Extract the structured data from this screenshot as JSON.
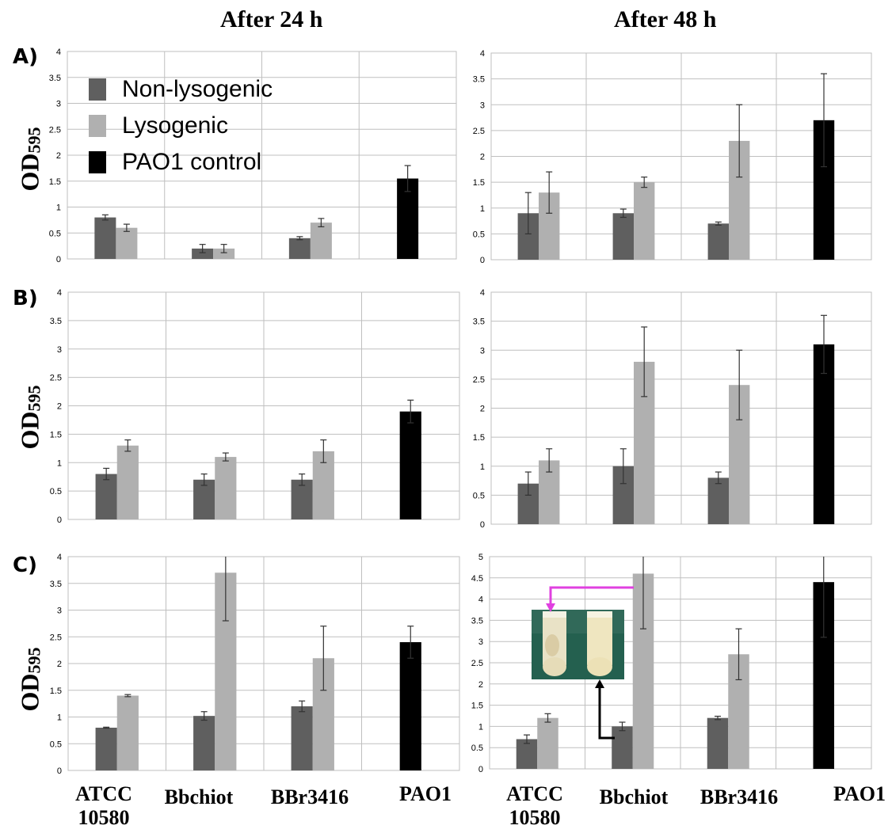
{
  "titles": {
    "left": "After 24 h",
    "right": "After 48 h"
  },
  "row_labels": [
    "A)",
    "B)",
    "C)"
  ],
  "y_axis_label": {
    "main": "OD",
    "sub": "595"
  },
  "categories_display": [
    {
      "line1": "ATCC",
      "line2": "10580"
    },
    {
      "line1": "Bbchiot",
      "line2": ""
    },
    {
      "line1": "BBr3416",
      "line2": ""
    },
    {
      "line1": "PAO1",
      "line2": ""
    }
  ],
  "legend": [
    {
      "label": "Non-lysogenic",
      "color": "#5f5f5f"
    },
    {
      "label": "Lysogenic",
      "color": "#b0b0b0"
    },
    {
      "label": "PAO1 control",
      "color": "#000000"
    }
  ],
  "colors": {
    "non_lysogenic": "#5f5f5f",
    "lysogenic": "#b0b0b0",
    "pao1": "#000000",
    "gridline": "#bfbfbf",
    "arrow_magenta": "#e040e0",
    "arrow_black": "#000000"
  },
  "chart_data": [
    {
      "panel": "A) After 24 h",
      "type": "bar",
      "categories": [
        "ATCC 10580",
        "Bbchiot",
        "BBr3416",
        "PAO1"
      ],
      "yticks": [
        "0",
        "0.5",
        "1",
        "1.5",
        "2",
        "2.5",
        "3",
        "3.5",
        "4"
      ],
      "ylim": [
        0,
        4
      ],
      "series": [
        {
          "name": "Non-lysogenic",
          "values": [
            0.8,
            0.2,
            0.4,
            null
          ],
          "errors": [
            0.05,
            0.08,
            0.03,
            null
          ]
        },
        {
          "name": "Lysogenic",
          "values": [
            0.6,
            0.2,
            0.7,
            null
          ],
          "errors": [
            0.07,
            0.08,
            0.08,
            null
          ]
        },
        {
          "name": "PAO1 control",
          "values": [
            null,
            null,
            null,
            1.55
          ],
          "errors": [
            null,
            null,
            null,
            0.25
          ]
        }
      ]
    },
    {
      "panel": "A) After 48 h",
      "type": "bar",
      "categories": [
        "ATCC 10580",
        "Bbchiot",
        "BBr3416",
        "PAO1"
      ],
      "yticks": [
        "0",
        "0.5",
        "1",
        "1.5",
        "2",
        "2.5",
        "3",
        "3.5",
        "4"
      ],
      "ylim": [
        0,
        4
      ],
      "series": [
        {
          "name": "Non-lysogenic",
          "values": [
            0.9,
            0.9,
            0.7,
            null
          ],
          "errors": [
            0.4,
            0.08,
            0.03,
            null
          ]
        },
        {
          "name": "Lysogenic",
          "values": [
            1.3,
            1.5,
            2.3,
            null
          ],
          "errors": [
            0.4,
            0.1,
            0.7,
            null
          ]
        },
        {
          "name": "PAO1 control",
          "values": [
            null,
            null,
            null,
            2.7
          ],
          "errors": [
            null,
            null,
            null,
            0.9
          ]
        }
      ]
    },
    {
      "panel": "B) After 24 h",
      "type": "bar",
      "categories": [
        "ATCC 10580",
        "Bbchiot",
        "BBr3416",
        "PAO1"
      ],
      "yticks": [
        "0",
        "0.5",
        "1",
        "1.5",
        "2",
        "2.5",
        "3",
        "3.5",
        "4"
      ],
      "ylim": [
        0,
        4
      ],
      "series": [
        {
          "name": "Non-lysogenic",
          "values": [
            0.8,
            0.7,
            0.7,
            null
          ],
          "errors": [
            0.1,
            0.1,
            0.1,
            null
          ]
        },
        {
          "name": "Lysogenic",
          "values": [
            1.3,
            1.1,
            1.2,
            null
          ],
          "errors": [
            0.1,
            0.07,
            0.2,
            null
          ]
        },
        {
          "name": "PAO1 control",
          "values": [
            null,
            null,
            null,
            1.9
          ],
          "errors": [
            null,
            null,
            null,
            0.2
          ]
        }
      ]
    },
    {
      "panel": "B) After 48 h",
      "type": "bar",
      "categories": [
        "ATCC 10580",
        "Bbchiot",
        "BBr3416",
        "PAO1"
      ],
      "yticks": [
        "0",
        "0.5",
        "1",
        "1.5",
        "2",
        "2.5",
        "3",
        "3.5",
        "4"
      ],
      "ylim": [
        0,
        4
      ],
      "series": [
        {
          "name": "Non-lysogenic",
          "values": [
            0.7,
            1.0,
            0.8,
            null
          ],
          "errors": [
            0.2,
            0.3,
            0.1,
            null
          ]
        },
        {
          "name": "Lysogenic",
          "values": [
            1.1,
            2.8,
            2.4,
            null
          ],
          "errors": [
            0.2,
            0.6,
            0.6,
            null
          ]
        },
        {
          "name": "PAO1 control",
          "values": [
            null,
            null,
            null,
            3.1
          ],
          "errors": [
            null,
            null,
            null,
            0.5
          ]
        }
      ]
    },
    {
      "panel": "C) After 24 h",
      "type": "bar",
      "categories": [
        "ATCC 10580",
        "Bbchiot",
        "BBr3416",
        "PAO1"
      ],
      "yticks": [
        "0",
        "0.5",
        "1",
        "1.5",
        "2",
        "2.5",
        "3",
        "3.5",
        "4"
      ],
      "ylim": [
        0,
        4
      ],
      "series": [
        {
          "name": "Non-lysogenic",
          "values": [
            0.8,
            1.02,
            1.2,
            null
          ],
          "errors": [
            0.01,
            0.08,
            0.1,
            null
          ]
        },
        {
          "name": "Lysogenic",
          "values": [
            1.4,
            3.7,
            2.1,
            null
          ],
          "errors": [
            0.02,
            0.9,
            0.6,
            null
          ]
        },
        {
          "name": "PAO1 control",
          "values": [
            null,
            null,
            null,
            2.4
          ],
          "errors": [
            null,
            null,
            null,
            0.3
          ]
        }
      ]
    },
    {
      "panel": "C) After 48 h",
      "type": "bar",
      "categories": [
        "ATCC 10580",
        "Bbchiot",
        "BBr3416",
        "PAO1"
      ],
      "yticks": [
        "0",
        "0.5",
        "1",
        "1.5",
        "2",
        "2.5",
        "3",
        "3.5",
        "4",
        "4.5",
        "5"
      ],
      "ylim": [
        0,
        5
      ],
      "series": [
        {
          "name": "Non-lysogenic",
          "values": [
            0.7,
            1.0,
            1.2,
            null
          ],
          "errors": [
            0.1,
            0.1,
            0.04,
            null
          ]
        },
        {
          "name": "Lysogenic",
          "values": [
            1.2,
            4.6,
            2.7,
            null
          ],
          "errors": [
            0.1,
            1.3,
            0.6,
            null
          ]
        },
        {
          "name": "PAO1 control",
          "values": [
            null,
            null,
            null,
            4.4
          ],
          "errors": [
            null,
            null,
            null,
            1.3
          ]
        }
      ]
    }
  ]
}
